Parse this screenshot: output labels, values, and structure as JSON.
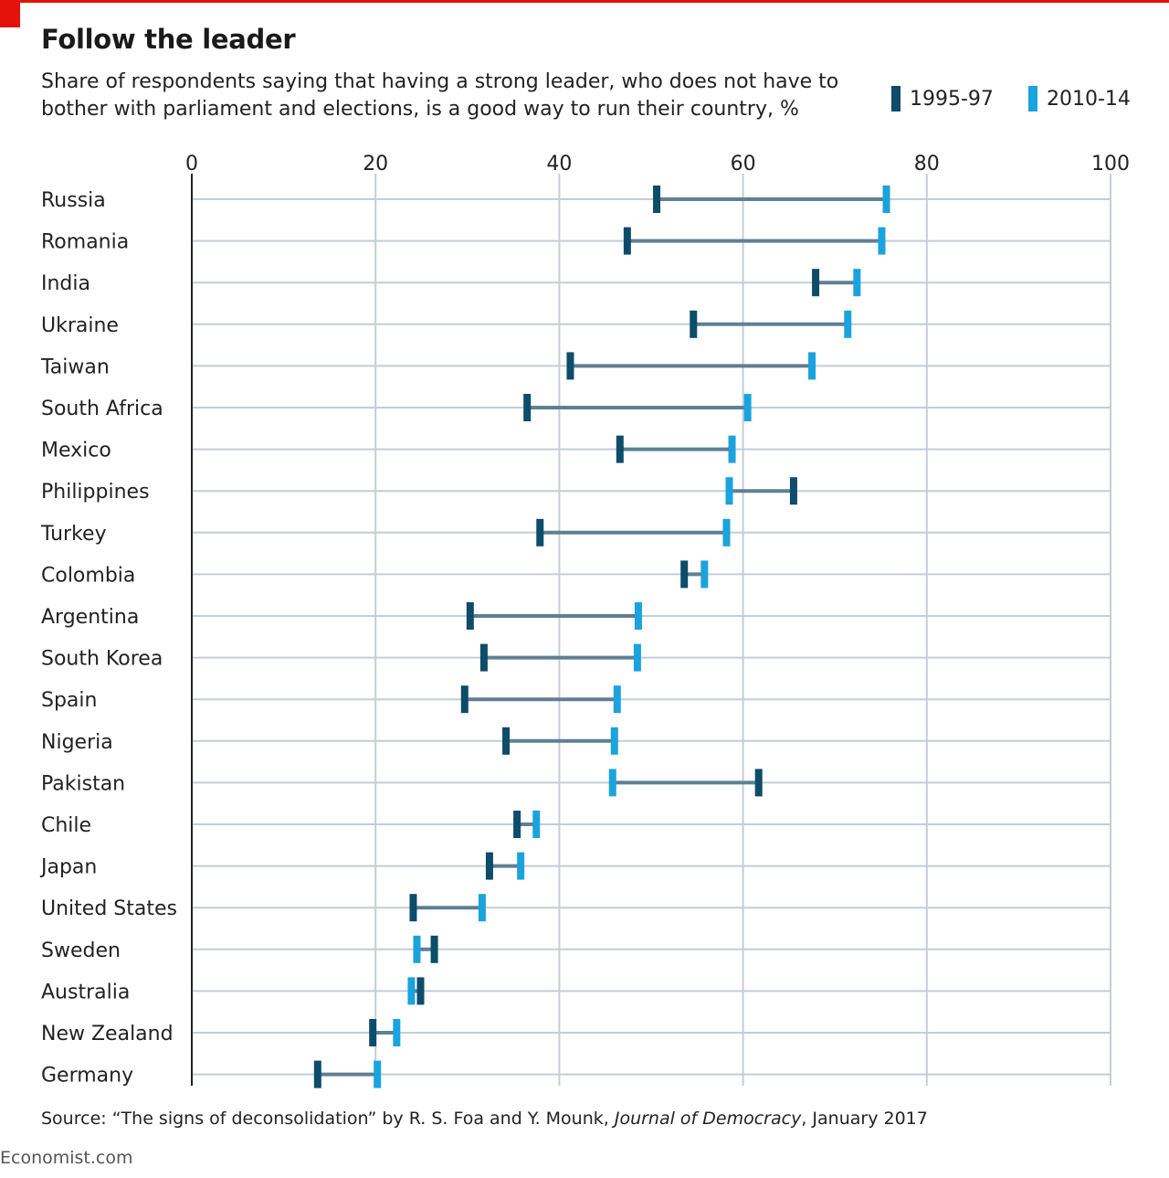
{
  "title": "Follow the leader",
  "subtitle": "Share of respondents saying that having a strong leader, who does not have to bother with parliament and elections, is a good way to run their country, %",
  "colors": {
    "accent_red": "#e3120b",
    "series_1995": "#0d4c6a",
    "series_2010": "#1aa3dc",
    "connector": "#5f7f93",
    "grid": "#c3ced6",
    "axis": "#222222"
  },
  "source": {
    "prefix": "Source: “The signs of deconsolidation” by R. S. Foa and Y. Mounk,",
    "journal": "Journal of Democracy",
    "suffix": ", January 2017"
  },
  "brand": "Economist.com",
  "chart_data": {
    "type": "dumbbell",
    "x_ticks": [
      0,
      20,
      40,
      60,
      80,
      100
    ],
    "xlim": [
      0,
      100
    ],
    "grid": true,
    "legend_position": "top-right",
    "series": [
      {
        "name": "1995-97",
        "color": "#0d4c6a"
      },
      {
        "name": "2010-14",
        "color": "#1aa3dc"
      }
    ],
    "categories": [
      "Russia",
      "Romania",
      "India",
      "Ukraine",
      "Taiwan",
      "South Africa",
      "Mexico",
      "Philippines",
      "Turkey",
      "Colombia",
      "Argentina",
      "South Korea",
      "Spain",
      "Nigeria",
      "Pakistan",
      "Chile",
      "Japan",
      "United States",
      "Sweden",
      "Australia",
      "New Zealand",
      "Germany"
    ],
    "values_1995_97": [
      50.6,
      47.4,
      67.9,
      54.6,
      41.2,
      36.5,
      46.6,
      65.5,
      37.9,
      53.6,
      30.3,
      31.8,
      29.7,
      34.2,
      61.7,
      35.4,
      32.4,
      24.1,
      26.4,
      24.9,
      19.7,
      13.7
    ],
    "values_2010_14": [
      75.6,
      75.1,
      72.4,
      71.4,
      67.5,
      60.5,
      58.8,
      58.5,
      58.2,
      55.8,
      48.6,
      48.5,
      46.3,
      46.0,
      45.8,
      37.5,
      35.8,
      31.6,
      24.5,
      23.9,
      22.3,
      20.2
    ]
  }
}
